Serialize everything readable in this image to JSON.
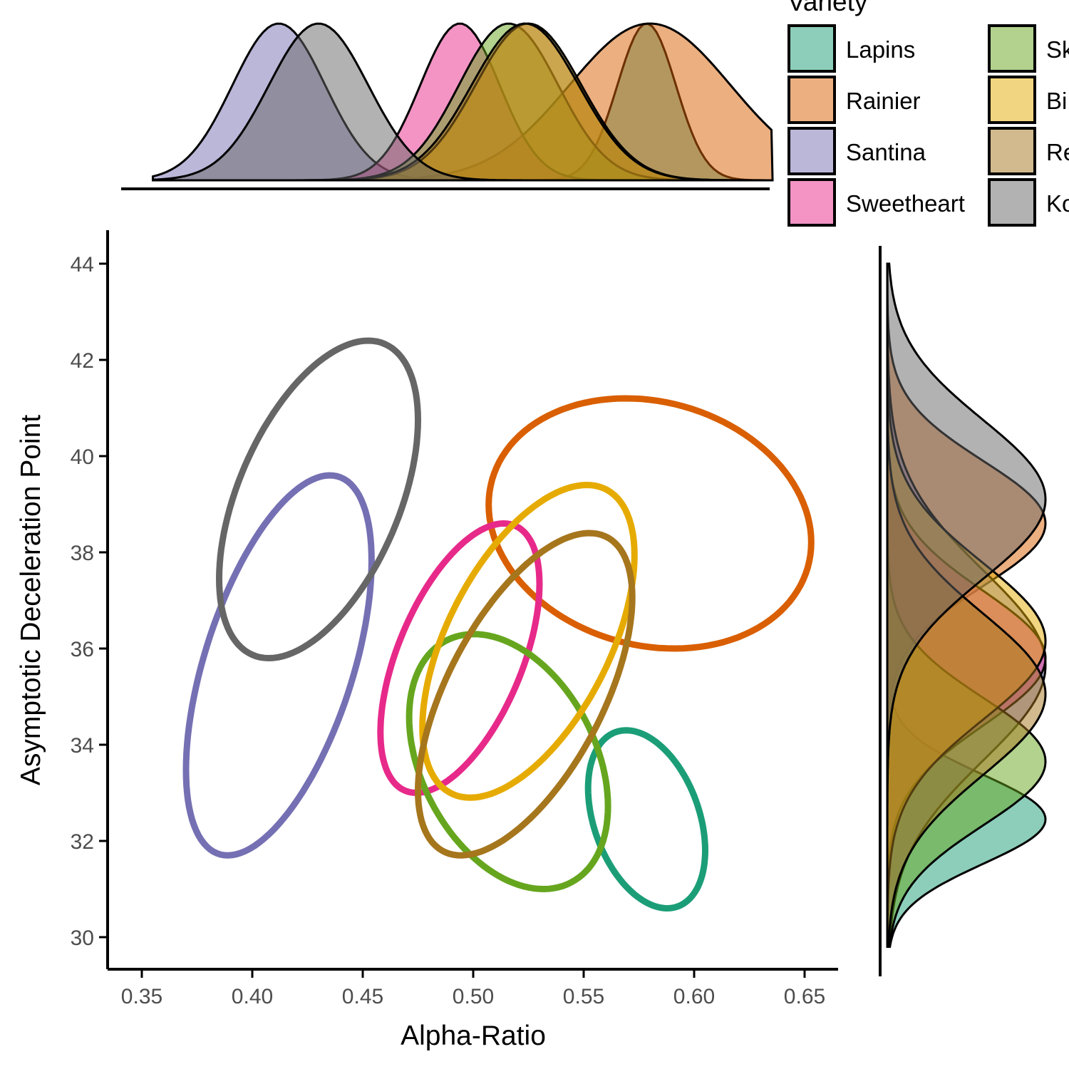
{
  "chart_data": {
    "type": "scatter",
    "subtype": "confidence ellipses with marginal density plots",
    "xlabel": "Alpha-Ratio",
    "ylabel": "Asymptotic Deceleration Point",
    "xlim": [
      0.335,
      0.665
    ],
    "ylim": [
      29.3,
      44.7
    ],
    "x_ticks": [
      "0.35",
      "0.40",
      "0.45",
      "0.50",
      "0.55",
      "0.60",
      "0.65"
    ],
    "y_ticks": [
      "30",
      "32",
      "34",
      "36",
      "38",
      "40",
      "42",
      "44"
    ],
    "legend": {
      "title": "Variety",
      "placement": "top-right",
      "columns": 2,
      "entries": [
        {
          "label": "Lapins",
          "color": "#1B9E77"
        },
        {
          "label": "Rainier",
          "color": "#D95F02"
        },
        {
          "label": "Santina",
          "color": "#7570B3"
        },
        {
          "label": "Sweetheart",
          "color": "#E7298A"
        },
        {
          "label": "Sk",
          "color": "#66A61E"
        },
        {
          "label": "Bi",
          "color": "#E6AB02"
        },
        {
          "label": "Re",
          "color": "#A6761D"
        },
        {
          "label": "Ko",
          "color": "#666666"
        }
      ]
    },
    "series": [
      {
        "name": "Lapins",
        "color": "#1B9E77",
        "x_range": [
          0.552,
          0.605
        ],
        "y_range": [
          30.6,
          34.3
        ]
      },
      {
        "name": "Rainier",
        "color": "#D95F02",
        "x_range": [
          0.507,
          0.653
        ],
        "y_range": [
          36.0,
          41.2
        ]
      },
      {
        "name": "Santina",
        "color": "#7570B3",
        "x_range": [
          0.37,
          0.454
        ],
        "y_range": [
          31.7,
          39.6
        ]
      },
      {
        "name": "Sweetheart",
        "color": "#E7298A",
        "x_range": [
          0.458,
          0.53
        ],
        "y_range": [
          33.0,
          38.6
        ]
      },
      {
        "name": "Sk",
        "color": "#66A61E",
        "x_range": [
          0.471,
          0.561
        ],
        "y_range": [
          31.0,
          36.3
        ]
      },
      {
        "name": "Bi",
        "color": "#E6AB02",
        "x_range": [
          0.477,
          0.573
        ],
        "y_range": [
          32.9,
          39.4
        ]
      },
      {
        "name": "Re",
        "color": "#A6761D",
        "x_range": [
          0.475,
          0.572
        ],
        "y_range": [
          31.7,
          38.4
        ]
      },
      {
        "name": "Ko",
        "color": "#666666",
        "x_range": [
          0.385,
          0.475
        ],
        "y_range": [
          35.8,
          42.4
        ]
      }
    ],
    "grid": false
  }
}
